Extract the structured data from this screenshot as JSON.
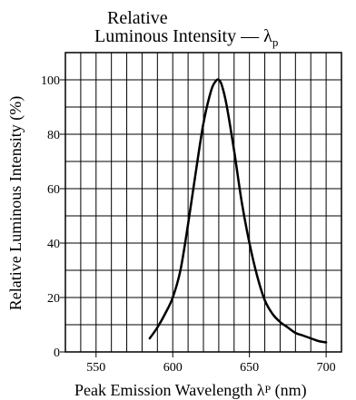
{
  "chart_data": {
    "type": "line",
    "title": {
      "line1": "Relative",
      "line2": "Luminous Intensity — ",
      "symbol": "λ",
      "subscript": "p"
    },
    "xlabel": {
      "text": "Peak Emission Wavelength ",
      "symbol": "λ",
      "subscript": "P",
      "unit": " (nm)"
    },
    "ylabel": "Relative Luminous Intensity  (%)",
    "xlim": [
      530,
      710
    ],
    "ylim": [
      0,
      110
    ],
    "x_ticks": [
      550,
      600,
      650,
      700
    ],
    "y_ticks": [
      0,
      20,
      40,
      60,
      80,
      100
    ],
    "x_grid_step": 10,
    "y_grid_step": 10,
    "grid": true,
    "series": [
      {
        "x": [
          585,
          590,
          595,
          600,
          605,
          610,
          615,
          620,
          625,
          628,
          630,
          632,
          635,
          640,
          645,
          650,
          655,
          660,
          665,
          670,
          675,
          680,
          685,
          690,
          695,
          700
        ],
        "y": [
          5,
          9,
          14,
          20,
          30,
          47,
          66,
          84,
          96,
          99.5,
          100,
          98,
          91,
          74,
          55,
          40,
          28,
          19,
          14,
          11,
          9,
          7,
          6,
          5,
          4,
          3.5
        ]
      }
    ]
  }
}
